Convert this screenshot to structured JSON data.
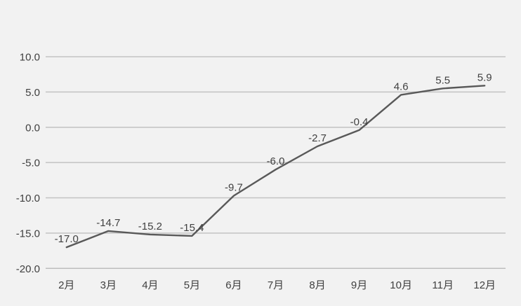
{
  "chart_data": {
    "type": "line",
    "title": "",
    "xlabel": "",
    "ylabel": "",
    "categories": [
      "2月",
      "3月",
      "4月",
      "5月",
      "6月",
      "7月",
      "8月",
      "9月",
      "10月",
      "11月",
      "12月"
    ],
    "values": [
      -17.0,
      -14.7,
      -15.2,
      -15.4,
      -9.7,
      -6.0,
      -2.7,
      -0.4,
      4.6,
      5.5,
      5.9
    ],
    "data_labels": [
      "-17.0",
      "-14.7",
      "-15.2",
      "-15.4",
      "-9.7",
      "-6.0",
      "-2.7",
      "-0.4",
      "4.6",
      "5.5",
      "5.9"
    ],
    "y_ticks": [
      {
        "value": 10,
        "label": "10.0"
      },
      {
        "value": 5,
        "label": "5.0"
      },
      {
        "value": 0,
        "label": "0.0"
      },
      {
        "value": -5,
        "label": "-5.0"
      },
      {
        "value": -10,
        "label": "-10.0"
      },
      {
        "value": -15,
        "label": "-15.0"
      },
      {
        "value": -20,
        "label": "-20.0"
      }
    ],
    "ylim": [
      -20,
      10
    ],
    "grid": true,
    "legend": false,
    "colors": {
      "background": "#f2f2f2",
      "gridline": "#c3c3c3",
      "axis_line": "#bdbdbd",
      "series_line": "#595959",
      "data_label_text": "#404040",
      "tick_label_text": "#3f3f3f"
    }
  }
}
